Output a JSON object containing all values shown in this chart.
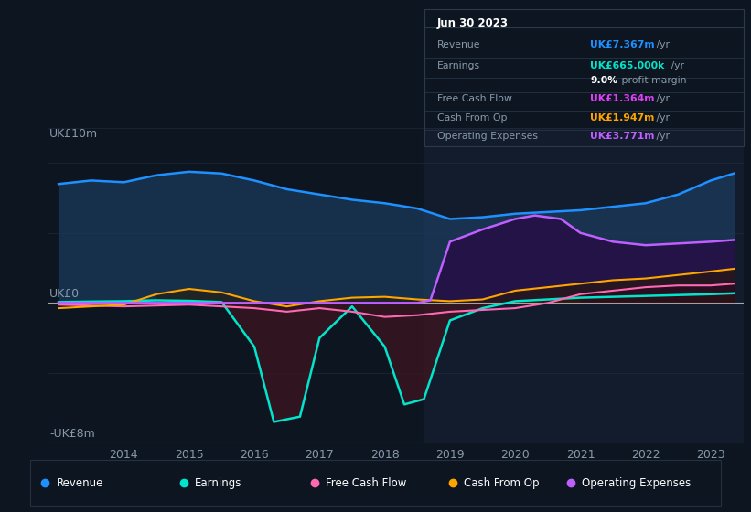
{
  "background_color": "#0d1520",
  "ylabel_top": "UK£10m",
  "ylabel_zero": "UK£0",
  "ylabel_bottom": "-UK£8m",
  "x_tick_years": [
    2014,
    2015,
    2016,
    2017,
    2018,
    2019,
    2020,
    2021,
    2022,
    2023
  ],
  "ylim": [
    -8,
    10
  ],
  "shaded_region_start": 2018.6,
  "revenue_color": "#1e90ff",
  "revenue_fill": "#1a3a5c",
  "earnings_color": "#00e5cc",
  "earnings_fill": "#3a1520",
  "fcf_color": "#ff69b4",
  "fcf_fill": "#3a0a1a",
  "cash_color": "#ffa500",
  "cash_fill": "#2a1a00",
  "opex_color": "#bf5fff",
  "opex_fill": "#251045",
  "legend": [
    {
      "label": "Revenue",
      "color": "#1e90ff"
    },
    {
      "label": "Earnings",
      "color": "#00e5cc"
    },
    {
      "label": "Free Cash Flow",
      "color": "#ff69b4"
    },
    {
      "label": "Cash From Op",
      "color": "#ffa500"
    },
    {
      "label": "Operating Expenses",
      "color": "#bf5fff"
    }
  ],
  "info_date": "Jun 30 2023",
  "info_rows": [
    {
      "label": "Revenue",
      "value": "UK£7.367m",
      "suffix": " /yr",
      "vcolor": "#1e90ff"
    },
    {
      "label": "Earnings",
      "value": "UK£665.000k",
      "suffix": " /yr",
      "vcolor": "#00e5cc"
    },
    {
      "label": "",
      "value": "9.0%",
      "suffix": " profit margin",
      "vcolor": "#ffffff"
    },
    {
      "label": "Free Cash Flow",
      "value": "UK£1.364m",
      "suffix": " /yr",
      "vcolor": "#e040fb"
    },
    {
      "label": "Cash From Op",
      "value": "UK£1.947m",
      "suffix": " /yr",
      "vcolor": "#ffa500"
    },
    {
      "label": "Operating Expenses",
      "value": "UK£3.771m",
      "suffix": " /yr",
      "vcolor": "#bf5fff"
    }
  ]
}
